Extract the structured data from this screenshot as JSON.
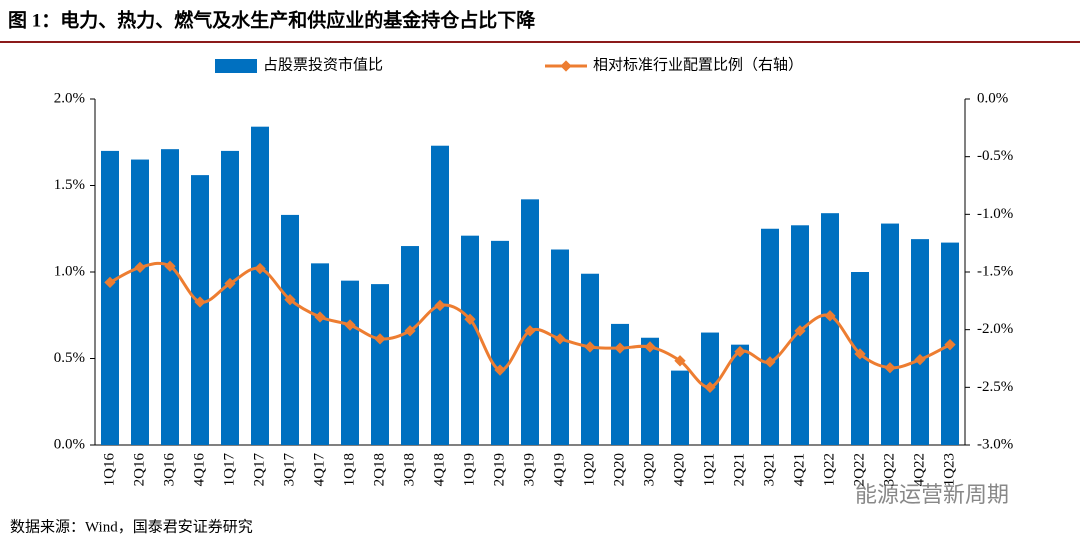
{
  "chart_data": {
    "type": "bar_line",
    "title": "图 1：电力、热力、燃气及水生产和供应业的基金持仓占比下降",
    "source": "数据来源：Wind，国泰君安证券研究",
    "watermark": "能源运营新周期",
    "categories": [
      "1Q16",
      "2Q16",
      "3Q16",
      "4Q16",
      "1Q17",
      "2Q17",
      "3Q17",
      "4Q17",
      "1Q18",
      "2Q18",
      "3Q18",
      "4Q18",
      "1Q19",
      "2Q19",
      "3Q19",
      "4Q19",
      "1Q20",
      "2Q20",
      "3Q20",
      "4Q20",
      "1Q21",
      "2Q21",
      "3Q21",
      "4Q21",
      "1Q22",
      "2Q22",
      "3Q22",
      "4Q22",
      "1Q23"
    ],
    "series": [
      {
        "name": "占股票投资市值比",
        "type": "bar",
        "color": "#0070c0",
        "axis": "y",
        "values": [
          1.7,
          1.65,
          1.71,
          1.56,
          1.7,
          1.84,
          1.33,
          1.05,
          0.95,
          0.93,
          1.15,
          1.73,
          1.21,
          1.18,
          1.42,
          1.13,
          0.99,
          0.7,
          0.62,
          0.43,
          0.65,
          0.58,
          1.25,
          1.27,
          1.34,
          1.0,
          1.28,
          1.19,
          1.17
        ]
      },
      {
        "name": "相对标准行业配置比例（右轴）",
        "type": "line",
        "color": "#ed7d31",
        "axis": "y2",
        "values": [
          -1.59,
          -1.46,
          -1.45,
          -1.76,
          -1.6,
          -1.47,
          -1.74,
          -1.89,
          -1.96,
          -2.08,
          -2.01,
          -1.79,
          -1.91,
          -2.35,
          -2.01,
          -2.08,
          -2.15,
          -2.16,
          -2.15,
          -2.27,
          -2.5,
          -2.19,
          -2.28,
          -2.01,
          -1.88,
          -2.21,
          -2.33,
          -2.26,
          -2.13
        ]
      }
    ],
    "ylim": [
      0,
      2
    ],
    "yticks": [
      {
        "value": 0,
        "label": "0.0%"
      },
      {
        "value": 0.5,
        "label": "0.5%"
      },
      {
        "value": 1,
        "label": "1.0%"
      },
      {
        "value": 1.5,
        "label": "1.5%"
      },
      {
        "value": 2,
        "label": "2.0%"
      }
    ],
    "y2lim": [
      -3,
      0
    ],
    "y2ticks": [
      {
        "value": 0,
        "label": "0.0%"
      },
      {
        "value": -0.5,
        "label": "-0.5%"
      },
      {
        "value": -1,
        "label": "-1.0%"
      },
      {
        "value": -1.5,
        "label": "-1.5%"
      },
      {
        "value": -2,
        "label": "-2.0%"
      },
      {
        "value": -2.5,
        "label": "-2.5%"
      },
      {
        "value": -3,
        "label": "-3.0%"
      }
    ],
    "grid": false,
    "legend": "top"
  }
}
